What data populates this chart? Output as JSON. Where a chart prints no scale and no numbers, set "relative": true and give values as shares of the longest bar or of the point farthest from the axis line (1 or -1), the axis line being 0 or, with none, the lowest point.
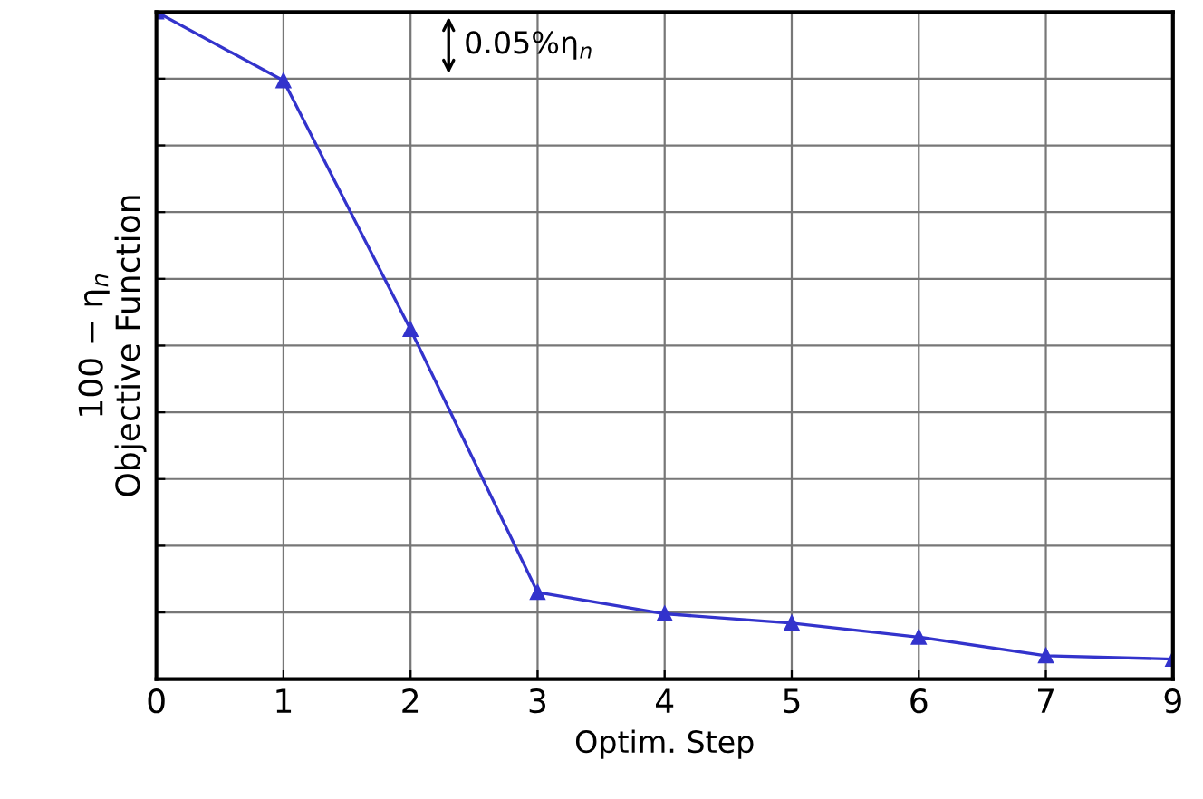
{
  "chart_data": {
    "type": "line",
    "relative": true,
    "xlabel": "Optim. Step",
    "ylabel": "100 − η$_{n}$\nObjective Function",
    "categories": [
      "0",
      "1",
      "2",
      "3",
      "4",
      "5",
      "6",
      "7",
      "9"
    ],
    "series": [
      {
        "color": "#3333cc",
        "values": [
          1.0,
          0.897,
          0.524,
          0.13,
          0.098,
          0.084,
          0.063,
          0.035,
          0.03
        ]
      }
    ],
    "marker": "triangle",
    "grid": true,
    "legend": false,
    "annotations": [
      "0.05%η$_{n}$"
    ]
  }
}
